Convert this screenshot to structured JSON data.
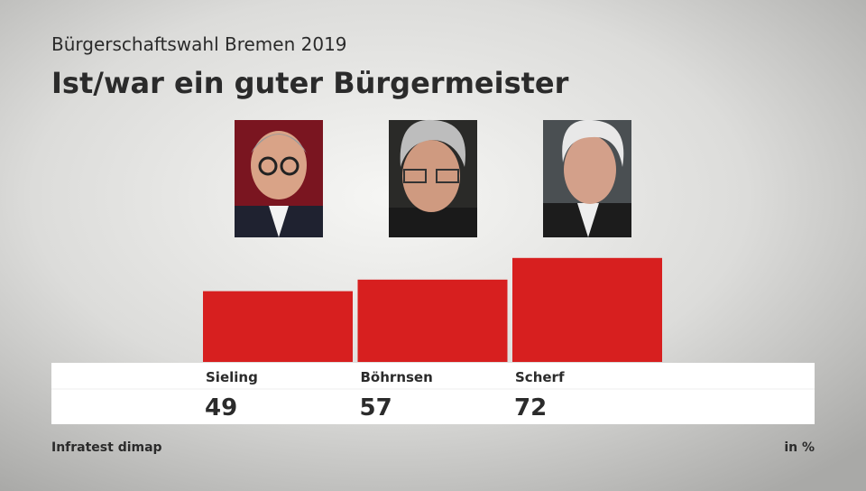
{
  "chart_data": {
    "type": "bar",
    "title": "Bürgerschaftswahl Bremen 2019",
    "subtitle": "Ist/war ein guter Bürgermeister",
    "categories": [
      "Sieling",
      "Böhrnsen",
      "Scherf"
    ],
    "values": [
      49,
      57,
      72
    ],
    "color": "#d71f1f",
    "source": "Infratest dimap",
    "unit_note": "in %"
  }
}
